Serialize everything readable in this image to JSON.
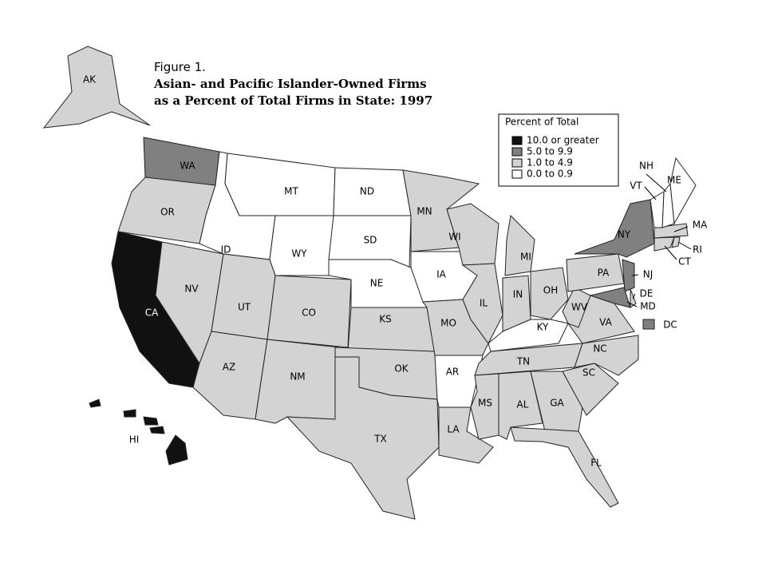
{
  "figure": {
    "label": "Figure 1.",
    "title_lines": [
      "Asian- and Pacific Islander-Owned Firms",
      "as a Percent of Total Firms in State:  1997"
    ]
  },
  "legend": {
    "title": "Percent of Total",
    "items": [
      {
        "label": "10.0 or greater",
        "color": "#111111"
      },
      {
        "label": "5.0 to 9.9",
        "color": "#808080"
      },
      {
        "label": "1.0 to 4.9",
        "color": "#d3d3d3"
      },
      {
        "label": "0.0 to 0.9",
        "color": "#ffffff"
      }
    ]
  },
  "states": [
    {
      "abbr": "AK",
      "category": 2
    },
    {
      "abbr": "WA",
      "category": 1
    },
    {
      "abbr": "OR",
      "category": 2
    },
    {
      "abbr": "CA",
      "category": 0
    },
    {
      "abbr": "NV",
      "category": 2
    },
    {
      "abbr": "ID",
      "category": 3
    },
    {
      "abbr": "MT",
      "category": 3
    },
    {
      "abbr": "WY",
      "category": 3
    },
    {
      "abbr": "UT",
      "category": 2
    },
    {
      "abbr": "CO",
      "category": 2
    },
    {
      "abbr": "AZ",
      "category": 2
    },
    {
      "abbr": "NM",
      "category": 2
    },
    {
      "abbr": "ND",
      "category": 3
    },
    {
      "abbr": "SD",
      "category": 3
    },
    {
      "abbr": "NE",
      "category": 3
    },
    {
      "abbr": "KS",
      "category": 2
    },
    {
      "abbr": "OK",
      "category": 2
    },
    {
      "abbr": "TX",
      "category": 2
    },
    {
      "abbr": "MN",
      "category": 2
    },
    {
      "abbr": "IA",
      "category": 3
    },
    {
      "abbr": "MO",
      "category": 2
    },
    {
      "abbr": "AR",
      "category": 3
    },
    {
      "abbr": "LA",
      "category": 2
    },
    {
      "abbr": "WI",
      "category": 2
    },
    {
      "abbr": "IL",
      "category": 2
    },
    {
      "abbr": "MI",
      "category": 2
    },
    {
      "abbr": "IN",
      "category": 2
    },
    {
      "abbr": "OH",
      "category": 2
    },
    {
      "abbr": "KY",
      "category": 3
    },
    {
      "abbr": "TN",
      "category": 2
    },
    {
      "abbr": "MS",
      "category": 2
    },
    {
      "abbr": "AL",
      "category": 2
    },
    {
      "abbr": "GA",
      "category": 2
    },
    {
      "abbr": "FL",
      "category": 2
    },
    {
      "abbr": "SC",
      "category": 2
    },
    {
      "abbr": "NC",
      "category": 2
    },
    {
      "abbr": "VA",
      "category": 2
    },
    {
      "abbr": "WV",
      "category": 2
    },
    {
      "abbr": "PA",
      "category": 2
    },
    {
      "abbr": "NY",
      "category": 1
    },
    {
      "abbr": "NJ",
      "category": 1
    },
    {
      "abbr": "DE",
      "category": 2
    },
    {
      "abbr": "MD",
      "category": 1
    },
    {
      "abbr": "DC",
      "category": 1
    },
    {
      "abbr": "CT",
      "category": 2
    },
    {
      "abbr": "RI",
      "category": 2
    },
    {
      "abbr": "MA",
      "category": 2
    },
    {
      "abbr": "NH",
      "category": 3
    },
    {
      "abbr": "VT",
      "category": 3
    },
    {
      "abbr": "ME",
      "category": 3
    },
    {
      "abbr": "HI",
      "category": 0
    }
  ]
}
